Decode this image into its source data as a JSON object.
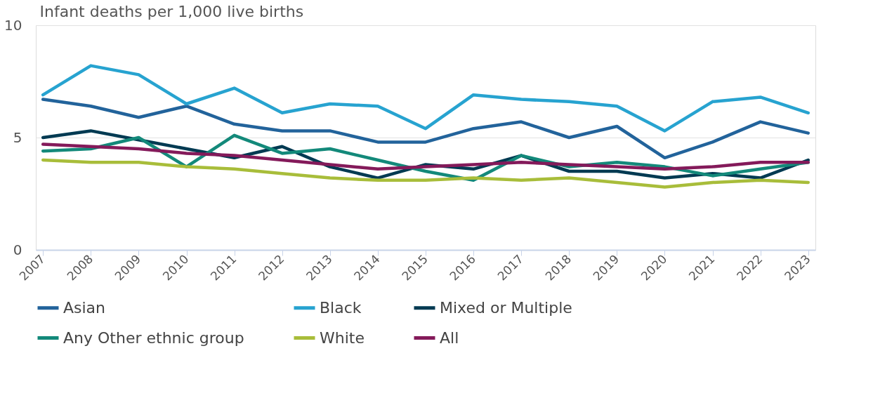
{
  "chart_data": {
    "type": "line",
    "ylabel": "Infant deaths per 1,000 live births",
    "categories": [
      "2007",
      "2008",
      "2009",
      "2010",
      "2011",
      "2012",
      "2013",
      "2014",
      "2015",
      "2016",
      "2017",
      "2018",
      "2019",
      "2020",
      "2021",
      "2022",
      "2023"
    ],
    "series": [
      {
        "name": "Asian",
        "color": "#22639b",
        "values": [
          6.7,
          6.4,
          5.9,
          6.4,
          5.6,
          5.3,
          5.3,
          4.8,
          4.8,
          5.4,
          5.7,
          5.0,
          5.5,
          4.1,
          4.8,
          5.7,
          5.2
        ]
      },
      {
        "name": "Black",
        "color": "#27a3d0",
        "values": [
          6.9,
          8.2,
          7.8,
          6.5,
          7.2,
          6.1,
          6.5,
          6.4,
          5.4,
          6.9,
          6.7,
          6.6,
          6.4,
          5.3,
          6.6,
          6.8,
          6.1
        ]
      },
      {
        "name": "Mixed or Multiple",
        "color": "#003a52",
        "values": [
          5.0,
          5.3,
          4.9,
          4.5,
          4.1,
          4.6,
          3.7,
          3.2,
          3.8,
          3.6,
          4.2,
          3.5,
          3.5,
          3.2,
          3.4,
          3.2,
          4.0
        ]
      },
      {
        "name": "Any Other ethnic group",
        "color": "#13897a",
        "values": [
          4.4,
          4.5,
          5.0,
          3.7,
          5.1,
          4.3,
          4.5,
          4.0,
          3.5,
          3.1,
          4.2,
          3.7,
          3.9,
          3.7,
          3.3,
          3.6,
          3.9
        ]
      },
      {
        "name": "White",
        "color": "#a8bd3a",
        "values": [
          4.0,
          3.9,
          3.9,
          3.7,
          3.6,
          3.4,
          3.2,
          3.1,
          3.1,
          3.2,
          3.1,
          3.2,
          3.0,
          2.8,
          3.0,
          3.1,
          3.0
        ]
      },
      {
        "name": "All",
        "color": "#841a5a",
        "values": [
          4.7,
          4.6,
          4.5,
          4.3,
          4.2,
          4.0,
          3.8,
          3.6,
          3.7,
          3.8,
          3.9,
          3.8,
          3.7,
          3.6,
          3.7,
          3.9,
          3.9
        ]
      }
    ],
    "ylim": [
      0,
      10
    ],
    "yticks": [
      0,
      5,
      10
    ],
    "grid": "y",
    "legend": "bottom",
    "marker": "none",
    "line_style": "solid"
  }
}
